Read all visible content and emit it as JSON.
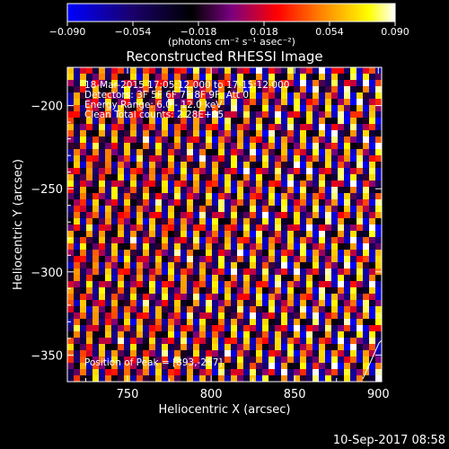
{
  "chart_data": {
    "type": "heatmap",
    "title": "Reconstructed RHESSI Image",
    "xlabel": "Heliocentric X (arcsec)",
    "ylabel": "Heliocentric Y (arcsec)",
    "xlim": [
      714,
      902
    ],
    "ylim": [
      -366,
      -177
    ],
    "x_ticks": [
      750,
      800,
      850,
      900
    ],
    "x_tick_labels": [
      "750",
      "800",
      "850",
      "900"
    ],
    "y_ticks": [
      -200,
      -250,
      -300,
      -350
    ],
    "y_tick_labels": [
      "−200",
      "−250",
      "−300",
      "−350"
    ],
    "colorbar": {
      "range": [
        -0.09,
        0.09
      ],
      "ticks": [
        -0.09,
        -0.054,
        -0.018,
        0.018,
        0.054,
        0.09
      ],
      "tick_labels": [
        "−0.090",
        "−0.054",
        "−0.018",
        "0.018",
        "0.054",
        "0.090"
      ],
      "unit_label": "(photons cm⁻² s⁻¹ asec⁻²)",
      "colors": [
        "#0000ff",
        "#1a006a",
        "#000000",
        "#7a0080",
        "#ff0000",
        "#ff8800",
        "#ffff00",
        "#ffffff"
      ]
    },
    "annotations": [
      "18-Mar-2015 17:05:12.000 to 17:15:12.000",
      "Detectors: 3F 5F 6F 7F 8F 9F, Att 0",
      "Energy Range: 6.0 - 12.0 keV",
      "Clean    Total counts: 2.28E+05"
    ],
    "peak_label": "Position of Peak = [893,-267]",
    "footer_timestamp": "10-Sep-2017 08:58"
  }
}
